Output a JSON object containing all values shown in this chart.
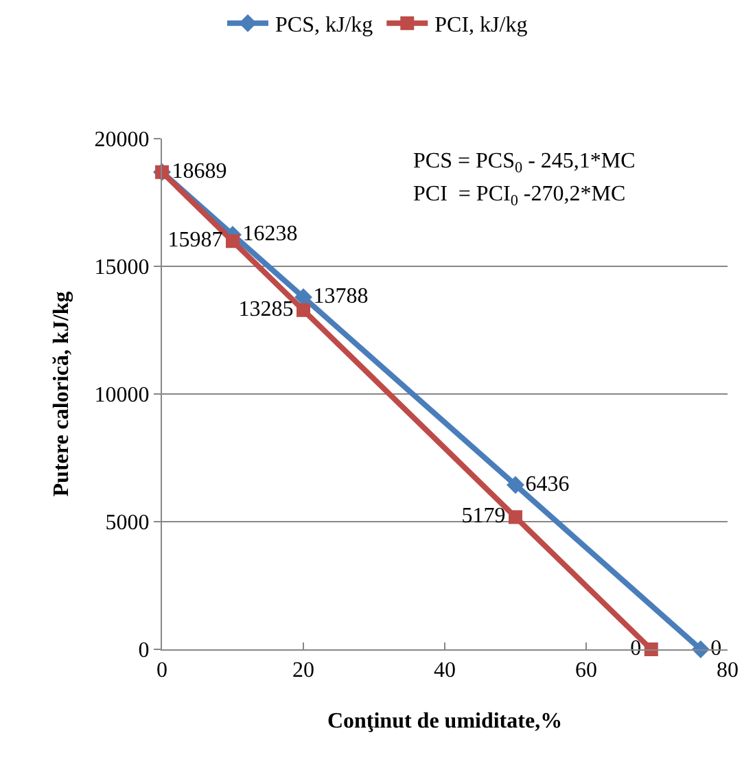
{
  "chart_data": {
    "type": "line",
    "xlabel": "Conţinut de umiditate,%",
    "ylabel": "Putere calorică, kJ/kg",
    "series": [
      {
        "name": "PCS, kJ/kg",
        "color": "#4a7ebb",
        "marker": "diamond",
        "x": [
          0,
          10,
          20,
          50,
          76.2
        ],
        "values": [
          18689,
          16238,
          13788,
          6436,
          0
        ],
        "value_labels": [
          "18689",
          "16238",
          "13788",
          "6436",
          "0"
        ]
      },
      {
        "name": "PCI, kJ/kg",
        "color": "#be4b48",
        "marker": "square",
        "x": [
          0,
          10,
          20,
          50,
          69.2
        ],
        "values": [
          18689,
          15987,
          13285,
          5179,
          0
        ],
        "value_labels": [
          null,
          "15987",
          "13285",
          "5179",
          "0"
        ]
      }
    ],
    "xlim": [
      0,
      80
    ],
    "xticks": [
      0,
      20,
      40,
      60,
      80
    ],
    "ylim": [
      0,
      20000
    ],
    "yticks": [
      0,
      5000,
      10000,
      15000,
      20000
    ],
    "grid": "y",
    "legend": "top",
    "line_style": "solid",
    "annotations": [
      "PCS = PCS$_{0}$ - 245,1*MC",
      "PCI  = PCI$_{0}$ -270,2*MC"
    ]
  }
}
